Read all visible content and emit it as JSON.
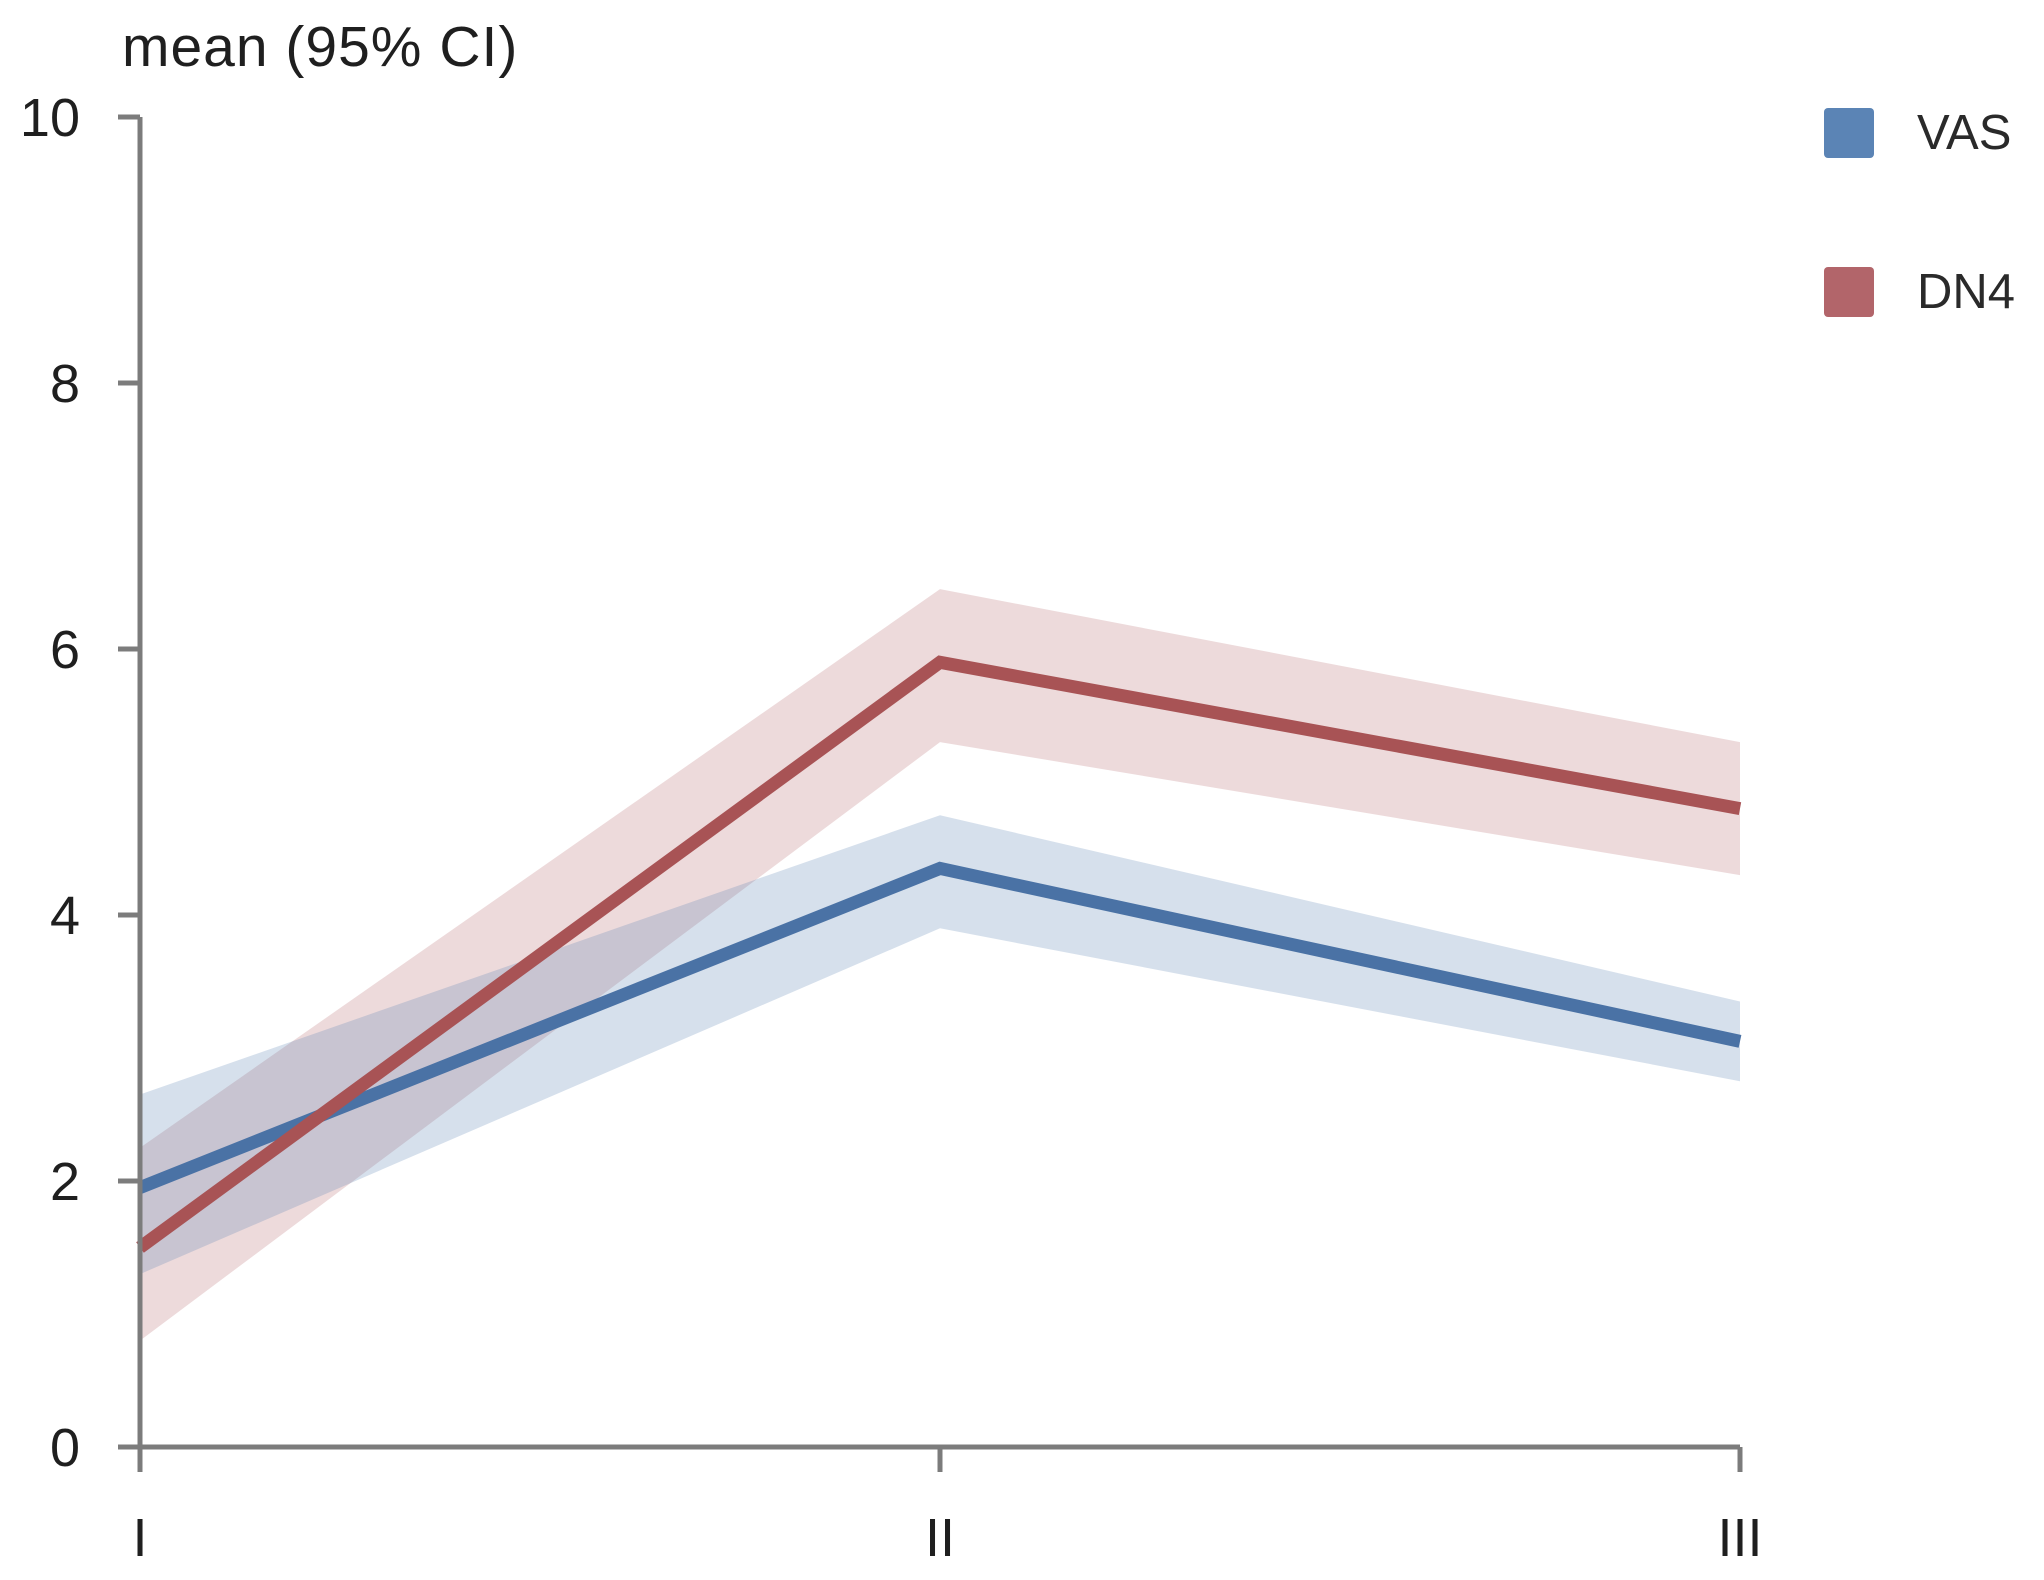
{
  "chart_data": {
    "type": "line",
    "title": "mean (95% CI)",
    "categories": [
      "I",
      "II",
      "III"
    ],
    "yticks": [
      0,
      2,
      4,
      6,
      8,
      10
    ],
    "ylim": [
      0,
      10
    ],
    "xlabel": "",
    "ylabel": "mean (95% CI)",
    "grid": false,
    "legend_position": "top-right",
    "band_meaning": "95% confidence interval",
    "axis_color": "#7c7c7c",
    "label_color": "#1f1f1f",
    "series": [
      {
        "name": "VAS",
        "line_color": "#4a72a5",
        "legend_color": "#5b84b5",
        "band_color": "#5b84b5",
        "band_opacity": 0.25,
        "mean": [
          1.95,
          4.35,
          3.05
        ],
        "ci_low": [
          1.3,
          3.9,
          2.75
        ],
        "ci_high": [
          2.65,
          4.75,
          3.35
        ]
      },
      {
        "name": "DN4",
        "line_color": "#a85355",
        "legend_color": "#b2656a",
        "band_color": "#b2656a",
        "band_opacity": 0.24,
        "mean": [
          1.5,
          5.9,
          4.8
        ],
        "ci_low": [
          0.8,
          5.3,
          4.3
        ],
        "ci_high": [
          2.25,
          6.45,
          5.3
        ]
      }
    ]
  }
}
